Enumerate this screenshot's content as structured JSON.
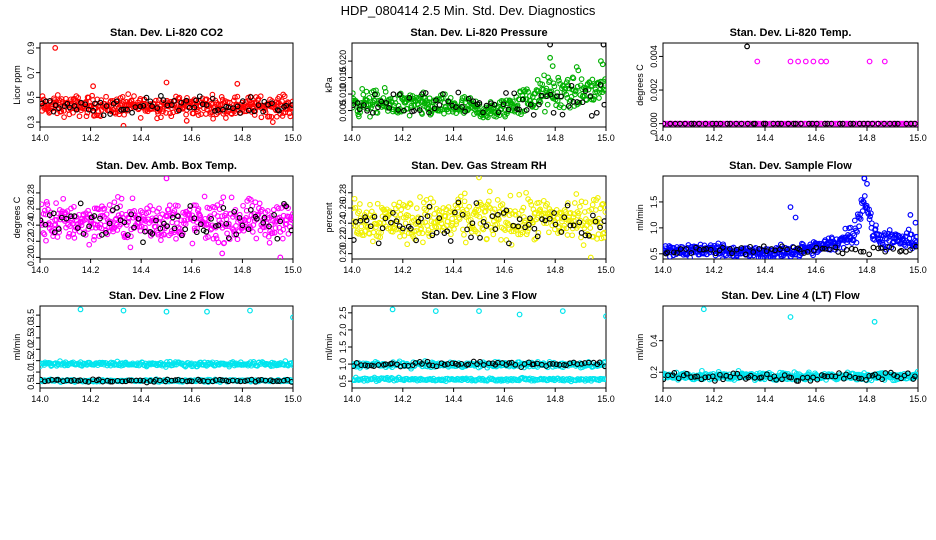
{
  "figure": {
    "title": "HDP_080414  2.5 Min. Std. Dev. Diagnostics"
  },
  "chart_data": [
    {
      "type": "scatter",
      "title": "Stan. Dev. Li-820 CO2",
      "xlabel": "",
      "ylabel": "Licor ppm",
      "xlim": [
        14.0,
        15.0
      ],
      "ylim": [
        0.26,
        0.94
      ],
      "xticks": [
        "14.0",
        "14.2",
        "14.4",
        "14.6",
        "14.8",
        "15.0"
      ],
      "yticks": [
        "0.3",
        "0.5",
        "0.7",
        "0.9"
      ],
      "series": [
        {
          "name": "primary",
          "color": "#ff0000",
          "x": [
            14.0,
            15.0
          ],
          "y": [
            0.43,
            0.43
          ],
          "band": [
            0.34,
            0.58
          ],
          "n": 420,
          "outliers_x": [
            14.06,
            14.21,
            14.33,
            14.5,
            14.58,
            14.78,
            14.92
          ],
          "outliers_y": [
            0.9,
            0.59,
            0.27,
            0.62,
            0.31,
            0.61,
            0.3
          ]
        },
        {
          "name": "secondary",
          "color": "#000000",
          "x": [
            14.0,
            15.0
          ],
          "y": [
            0.43,
            0.43
          ],
          "band": [
            0.34,
            0.55
          ],
          "n": 70,
          "outliers_x": [],
          "outliers_y": []
        }
      ]
    },
    {
      "type": "scatter",
      "title": "Stan. Dev. Li-820 Pressure",
      "xlabel": "",
      "ylabel": "kPa",
      "xlim": [
        14.0,
        15.0
      ],
      "ylim": [
        0.0,
        0.0255
      ],
      "xticks": [
        "14.0",
        "14.2",
        "14.4",
        "14.6",
        "14.8",
        "15.0"
      ],
      "yticks": [
        "0.005",
        "0.010",
        "0.015",
        "0.020"
      ],
      "series": [
        {
          "name": "primary",
          "color": "#00b000",
          "x": [
            14.0,
            14.45,
            14.55,
            14.75,
            15.0
          ],
          "y": [
            0.0075,
            0.006,
            0.0045,
            0.01,
            0.0115
          ],
          "band": [
            0.003,
            0.018
          ],
          "n": 430,
          "outliers_x": [
            14.78,
            14.79,
            14.98
          ],
          "outliers_y": [
            0.021,
            0.0185,
            0.02
          ]
        },
        {
          "name": "secondary",
          "color": "#000000",
          "x": [
            14.0,
            15.0
          ],
          "y": [
            0.007,
            0.008
          ],
          "band": [
            0.002,
            0.014
          ],
          "n": 70,
          "outliers_x": [
            14.78,
            14.99
          ],
          "outliers_y": [
            0.025,
            0.025
          ]
        }
      ]
    },
    {
      "type": "scatter",
      "title": "Stan. Dev. Li-820 Temp.",
      "xlabel": "",
      "ylabel": "degrees C",
      "xlim": [
        14.0,
        15.0
      ],
      "ylim": [
        -0.0002,
        0.0048
      ],
      "xticks": [
        "14.0",
        "14.2",
        "14.4",
        "14.6",
        "14.8",
        "15.0"
      ],
      "yticks": [
        "0.000",
        "0.002",
        "0.004"
      ],
      "series": [
        {
          "name": "primary",
          "color": "#ff00ff",
          "x": [
            14.0,
            15.0
          ],
          "y": [
            0.0,
            0.0
          ],
          "band": [
            0.0,
            0.0
          ],
          "n": 140,
          "outliers_x": [
            14.37,
            14.5,
            14.53,
            14.56,
            14.59,
            14.62,
            14.64,
            14.81,
            14.87
          ],
          "outliers_y": [
            0.0037,
            0.0037,
            0.0037,
            0.0037,
            0.0037,
            0.0037,
            0.0037,
            0.0037,
            0.0037
          ]
        },
        {
          "name": "secondary",
          "color": "#000000",
          "x": [
            14.0,
            15.0
          ],
          "y": [
            0.0,
            0.0
          ],
          "band": [
            0.0,
            0.0
          ],
          "n": 50,
          "outliers_x": [
            14.33
          ],
          "outliers_y": [
            0.0046
          ]
        }
      ]
    },
    {
      "type": "scatter",
      "title": "Stan. Dev. Amb. Box Temp.",
      "xlabel": "",
      "ylabel": "degrees C",
      "xlim": [
        14.0,
        15.0
      ],
      "ylim": [
        0.198,
        0.301
      ],
      "xticks": [
        "14.0",
        "14.2",
        "14.4",
        "14.6",
        "14.8",
        "15.0"
      ],
      "yticks": [
        "0.20",
        "0.22",
        "0.24",
        "0.26",
        "0.28"
      ],
      "series": [
        {
          "name": "primary",
          "color": "#ff00ff",
          "x": [
            14.0,
            15.0
          ],
          "y": [
            0.245,
            0.245
          ],
          "band": [
            0.21,
            0.285
          ],
          "n": 430,
          "outliers_x": [
            14.5,
            14.72,
            14.95
          ],
          "outliers_y": [
            0.298,
            0.205,
            0.2
          ]
        },
        {
          "name": "secondary",
          "color": "#000000",
          "x": [
            14.0,
            15.0
          ],
          "y": [
            0.245,
            0.245
          ],
          "band": [
            0.215,
            0.275
          ],
          "n": 70,
          "outliers_x": [],
          "outliers_y": []
        }
      ]
    },
    {
      "type": "scatter",
      "title": "Stan. Dev. Gas Stream RH",
      "xlabel": "",
      "ylabel": "percent",
      "xlim": [
        14.0,
        15.0
      ],
      "ylim": [
        0.193,
        0.302
      ],
      "xticks": [
        "14.0",
        "14.2",
        "14.4",
        "14.6",
        "14.8",
        "15.0"
      ],
      "yticks": [
        "0.20",
        "0.22",
        "0.24",
        "0.26",
        "0.28"
      ],
      "series": [
        {
          "name": "primary",
          "color": "#f0f000",
          "x": [
            14.0,
            15.0
          ],
          "y": [
            0.245,
            0.245
          ],
          "band": [
            0.205,
            0.29
          ],
          "n": 430,
          "outliers_x": [
            14.5,
            14.94
          ],
          "outliers_y": [
            0.3,
            0.195
          ]
        },
        {
          "name": "secondary",
          "color": "#000000",
          "x": [
            14.0,
            15.0
          ],
          "y": [
            0.24,
            0.24
          ],
          "band": [
            0.205,
            0.28
          ],
          "n": 70,
          "outliers_x": [],
          "outliers_y": []
        }
      ]
    },
    {
      "type": "scatter",
      "title": "Stan. Dev. Sample Flow",
      "xlabel": "",
      "ylabel": "ml/min",
      "xlim": [
        14.0,
        15.0
      ],
      "ylim": [
        0.4,
        2.0
      ],
      "xticks": [
        "14.0",
        "14.2",
        "14.4",
        "14.6",
        "14.8",
        "15.0"
      ],
      "yticks": [
        "0.5",
        "1.0",
        "1.5"
      ],
      "series": [
        {
          "name": "primary",
          "color": "#0000ff",
          "x": [
            14.0,
            14.2,
            14.4,
            14.6,
            14.7,
            14.76,
            14.79,
            14.82,
            14.88,
            15.0
          ],
          "y": [
            0.55,
            0.58,
            0.5,
            0.6,
            0.75,
            1.0,
            1.7,
            0.9,
            0.75,
            0.75
          ],
          "band": [
            0.45,
            0.9
          ],
          "n": 430,
          "outliers_x": [
            14.5,
            14.52,
            14.79,
            14.8,
            14.97,
            14.99
          ],
          "outliers_y": [
            1.4,
            1.2,
            1.95,
            1.85,
            1.25,
            1.1
          ]
        },
        {
          "name": "secondary",
          "color": "#000000",
          "x": [
            14.0,
            15.0
          ],
          "y": [
            0.55,
            0.6
          ],
          "band": [
            0.48,
            0.75
          ],
          "n": 60,
          "outliers_x": [],
          "outliers_y": []
        }
      ]
    },
    {
      "type": "scatter",
      "title": "Stan. Dev. Line 2 Flow",
      "xlabel": "",
      "ylabel": "ml/min",
      "xlim": [
        14.0,
        15.0
      ],
      "ylim": [
        0.3,
        3.9
      ],
      "xticks": [
        "14.0",
        "14.2",
        "14.4",
        "14.6",
        "14.8",
        "15.0"
      ],
      "yticks": [
        "0.5",
        "1.0",
        "1.5",
        "2.0",
        "2.5",
        "3.0",
        "3.5"
      ],
      "series": [
        {
          "name": "primary",
          "color": "#00e5ee",
          "x": [
            14.0,
            15.0
          ],
          "y": [
            1.35,
            1.35
          ],
          "band": [
            1.2,
            1.5
          ],
          "n": 260,
          "outliers_x": [
            14.16,
            14.33,
            14.5,
            14.66,
            14.83,
            15.0
          ],
          "outliers_y": [
            3.75,
            3.7,
            3.65,
            3.65,
            3.7,
            3.4
          ]
        },
        {
          "name": "primary-low",
          "color": "#00e5ee",
          "x": [
            14.0,
            15.0
          ],
          "y": [
            0.62,
            0.62
          ],
          "band": [
            0.55,
            0.7
          ],
          "n": 200,
          "outliers_x": [],
          "outliers_y": []
        },
        {
          "name": "secondary",
          "color": "#000000",
          "x": [
            14.0,
            15.0
          ],
          "y": [
            0.62,
            0.62
          ],
          "band": [
            0.55,
            0.72
          ],
          "n": 70,
          "outliers_x": [],
          "outliers_y": []
        }
      ]
    },
    {
      "type": "scatter",
      "title": "Stan. Dev. Line 3 Flow",
      "xlabel": "",
      "ylabel": "ml/min",
      "xlim": [
        14.0,
        15.0
      ],
      "ylim": [
        0.3,
        2.7
      ],
      "xticks": [
        "14.0",
        "14.2",
        "14.4",
        "14.6",
        "14.8",
        "15.0"
      ],
      "yticks": [
        "0.5",
        "1.0",
        "1.5",
        "2.0",
        "2.5"
      ],
      "series": [
        {
          "name": "primary",
          "color": "#00e5ee",
          "x": [
            14.0,
            15.0
          ],
          "y": [
            0.98,
            0.98
          ],
          "band": [
            0.85,
            1.1
          ],
          "n": 260,
          "outliers_x": [
            14.16,
            14.33,
            14.5,
            14.66,
            14.83,
            15.0
          ],
          "outliers_y": [
            2.6,
            2.55,
            2.55,
            2.45,
            2.55,
            2.4
          ]
        },
        {
          "name": "primary-low",
          "color": "#00e5ee",
          "x": [
            14.0,
            15.0
          ],
          "y": [
            0.55,
            0.55
          ],
          "band": [
            0.48,
            0.62
          ],
          "n": 200,
          "outliers_x": [],
          "outliers_y": []
        },
        {
          "name": "secondary",
          "color": "#000000",
          "x": [
            14.0,
            15.0
          ],
          "y": [
            1.0,
            1.0
          ],
          "band": [
            0.9,
            1.15
          ],
          "n": 70,
          "outliers_x": [],
          "outliers_y": []
        }
      ]
    },
    {
      "type": "scatter",
      "title": "Stan. Dev. Line 4 (LT) Flow",
      "xlabel": "",
      "ylabel": "ml/min",
      "xlim": [
        14.0,
        15.0
      ],
      "ylim": [
        0.1,
        0.62
      ],
      "xticks": [
        "14.0",
        "14.2",
        "14.4",
        "14.6",
        "14.8",
        "15.0"
      ],
      "yticks": [
        "0.2",
        "0.4"
      ],
      "series": [
        {
          "name": "primary",
          "color": "#00e5ee",
          "x": [
            14.0,
            15.0
          ],
          "y": [
            0.175,
            0.175
          ],
          "band": [
            0.14,
            0.21
          ],
          "n": 420,
          "outliers_x": [
            14.16,
            14.5,
            14.83
          ],
          "outliers_y": [
            0.6,
            0.55,
            0.52
          ]
        },
        {
          "name": "secondary",
          "color": "#000000",
          "x": [
            14.0,
            15.0
          ],
          "y": [
            0.17,
            0.17
          ],
          "band": [
            0.13,
            0.21
          ],
          "n": 70,
          "outliers_x": [],
          "outliers_y": []
        }
      ]
    }
  ]
}
